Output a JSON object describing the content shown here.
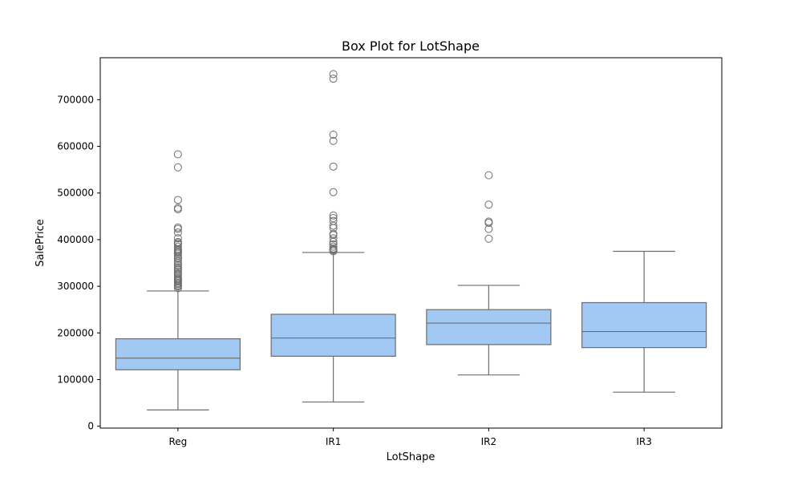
{
  "chart_data": {
    "type": "box",
    "title": "Box Plot for LotShape",
    "xlabel": "LotShape",
    "ylabel": "SalePrice",
    "ylim": [
      -4000,
      790000
    ],
    "yticks": [
      0,
      100000,
      200000,
      300000,
      400000,
      500000,
      600000,
      700000
    ],
    "ytick_labels": [
      "0",
      "100000",
      "200000",
      "300000",
      "400000",
      "500000",
      "600000",
      "700000"
    ],
    "categories": [
      "Reg",
      "IR1",
      "IR2",
      "IR3"
    ],
    "box_color": "#a1c9f4",
    "line_color": "#6e6e6e",
    "boxes": [
      {
        "category": "Reg",
        "whisker_low": 34900,
        "q1": 121000,
        "median": 146000,
        "q3": 187500,
        "whisker_high": 290000,
        "outliers": [
          582933,
          555000,
          485000,
          468000,
          465000,
          426000,
          423000,
          415298,
          403000,
          395000,
          392500,
          390000,
          385000,
          380000,
          377500,
          375000,
          372500,
          370000,
          366000,
          362000,
          359100,
          354000,
          350000,
          345000,
          341000,
          337500,
          335000,
          332000,
          328000,
          325000,
          320000,
          317000,
          314813,
          312500,
          310000,
          307000,
          305000,
          302000,
          299800,
          296000
        ]
      },
      {
        "category": "IR1",
        "whisker_low": 52000,
        "q1": 150000,
        "median": 189000,
        "q3": 240000,
        "whisker_high": 372500,
        "outliers": [
          755000,
          745000,
          625000,
          611657,
          556581,
          501837,
          451950,
          446261,
          440000,
          430000,
          424870,
          412500,
          410000,
          402861,
          395192,
          390000,
          385000,
          381000,
          378500,
          377426,
          375000
        ]
      },
      {
        "category": "IR2",
        "whisker_low": 110000,
        "q1": 175000,
        "median": 221000,
        "q3": 250000,
        "whisker_high": 302000,
        "outliers": [
          538000,
          475000,
          438780,
          436000,
          423000,
          402000
        ]
      },
      {
        "category": "IR3",
        "whisker_low": 73000,
        "q1": 168500,
        "median": 203000,
        "q3": 265000,
        "whisker_high": 375000,
        "outliers": []
      }
    ]
  }
}
